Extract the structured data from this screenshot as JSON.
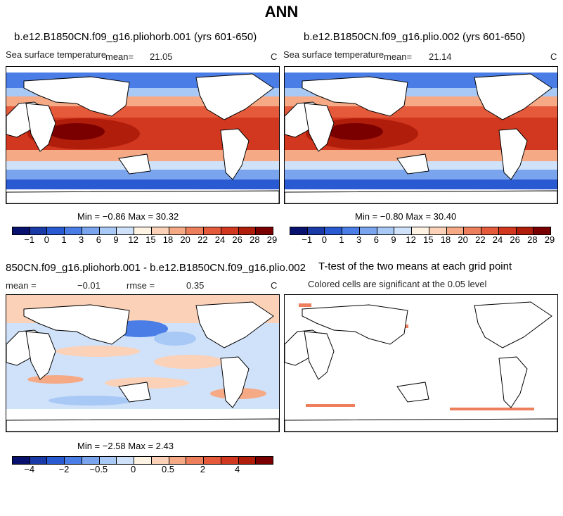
{
  "title": "ANN",
  "panels": {
    "p1": {
      "title": "b.e12.B1850CN.f09_g16.pliohorb.001 (yrs 601-650)",
      "field": "Sea surface temperature",
      "mean_label": "mean=",
      "mean": "21.05",
      "units": "C",
      "stats": "Min = −0.86 Max = 30.32"
    },
    "p2": {
      "title": "b.e12.B1850CN.f09_g16.plio.002 (yrs 601-650)",
      "field": "Sea surface temperature",
      "mean_label": "mean=",
      "mean": "21.14",
      "units": "C",
      "stats": "Min = −0.80 Max = 30.40"
    },
    "p3": {
      "title": "850CN.f09_g16.pliohorb.001 - b.e12.B1850CN.f09_g16.plio.002",
      "mean_label": "mean =",
      "mean": "−0.01",
      "rmse_label": "rmse =",
      "rmse": "0.35",
      "units": "C",
      "stats": "Min = −2.58 Max = 2.43"
    },
    "p4": {
      "title": "T-test of the two means at each grid point",
      "subtitle": "Colored cells are significant at the 0.05 level"
    }
  },
  "colorbars": {
    "sst": {
      "colors": [
        "#08126e",
        "#1a3aa8",
        "#2a5ad2",
        "#4a7ee6",
        "#7aa5ee",
        "#a8c8f5",
        "#d0e2fa",
        "#fff4e4",
        "#fbd1b7",
        "#f5a985",
        "#ee7f5c",
        "#e55a3b",
        "#d2371f",
        "#b01e0b",
        "#7a0000"
      ],
      "labels": [
        "−1",
        "0",
        "1",
        "3",
        "6",
        "9",
        "12",
        "15",
        "18",
        "20",
        "22",
        "24",
        "26",
        "28",
        "29"
      ]
    },
    "diff": {
      "colors": [
        "#08126e",
        "#1a3aa8",
        "#2a5ad2",
        "#4a7ee6",
        "#7aa5ee",
        "#a8c8f5",
        "#d0e2fa",
        "#fff4e4",
        "#fbd1b7",
        "#f5a985",
        "#ee7f5c",
        "#e55a3b",
        "#d2371f",
        "#b01e0b",
        "#7a0000"
      ],
      "labels": [
        "−4",
        "−2",
        "−0.5",
        "0",
        "0.5",
        "2",
        "4"
      ]
    }
  }
}
